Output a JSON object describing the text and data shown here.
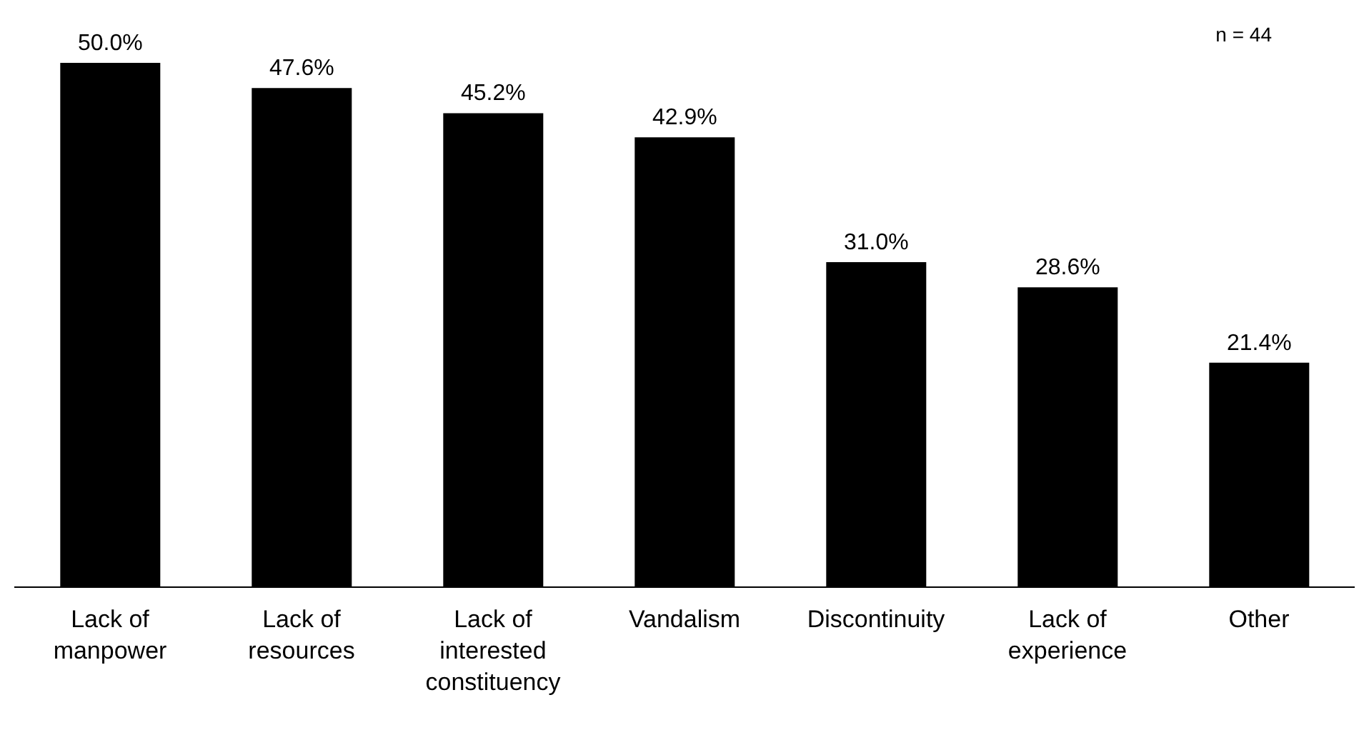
{
  "chart_data": {
    "type": "bar",
    "categories": [
      "Lack of manpower",
      "Lack of resources",
      "Lack of interested constituency",
      "Vandalism",
      "Discontinuity",
      "Lack of experience",
      "Other"
    ],
    "values": [
      50.0,
      47.6,
      45.2,
      42.9,
      31.0,
      28.6,
      21.4
    ],
    "value_labels": [
      "50.0%",
      "47.6%",
      "45.2%",
      "42.9%",
      "31.0%",
      "28.6%",
      "21.4%"
    ],
    "color": "#000000",
    "tick_labels": "x",
    "annotations": [
      "n = 44"
    ]
  }
}
